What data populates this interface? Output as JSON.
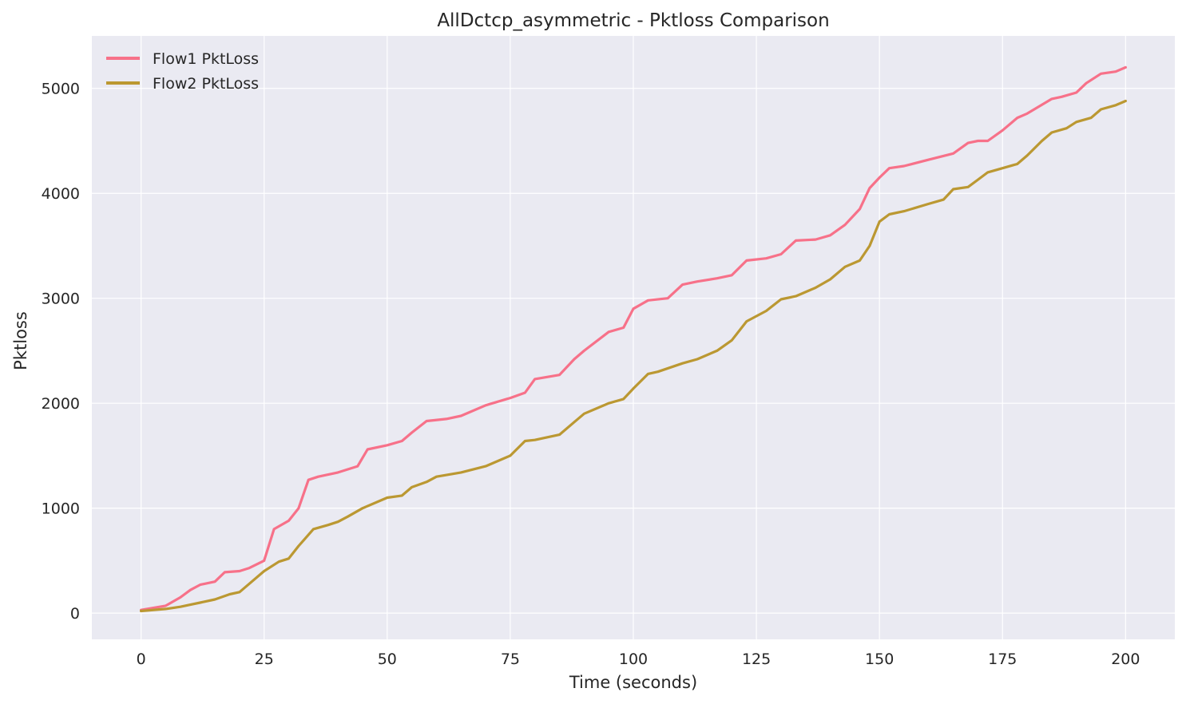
{
  "chart_data": {
    "type": "line",
    "title": "AllDctcp_asymmetric - Pktloss Comparison",
    "xlabel": "Time (seconds)",
    "ylabel": "Pktloss",
    "xlim": [
      -10,
      210
    ],
    "ylim": [
      -250,
      5500
    ],
    "x_ticks": [
      0,
      25,
      50,
      75,
      100,
      125,
      150,
      175,
      200
    ],
    "y_ticks": [
      0,
      1000,
      2000,
      3000,
      4000,
      5000
    ],
    "grid": true,
    "legend_position": "top-left",
    "series": [
      {
        "name": "Flow1 PktLoss",
        "color": "#f77189",
        "x": [
          0,
          5,
          8,
          10,
          12,
          15,
          17,
          20,
          22,
          25,
          27,
          30,
          32,
          34,
          36,
          40,
          44,
          46,
          50,
          53,
          55,
          58,
          62,
          65,
          70,
          75,
          78,
          80,
          85,
          88,
          90,
          95,
          98,
          100,
          103,
          107,
          110,
          113,
          117,
          120,
          123,
          127,
          130,
          133,
          137,
          140,
          143,
          146,
          148,
          150,
          152,
          155,
          160,
          165,
          168,
          170,
          172,
          175,
          178,
          180,
          185,
          187,
          190,
          192,
          195,
          198,
          200
        ],
        "y": [
          30,
          70,
          150,
          220,
          270,
          300,
          390,
          400,
          430,
          500,
          800,
          880,
          1000,
          1270,
          1300,
          1340,
          1400,
          1560,
          1600,
          1640,
          1720,
          1830,
          1850,
          1880,
          1980,
          2050,
          2100,
          2230,
          2270,
          2420,
          2500,
          2680,
          2720,
          2900,
          2980,
          3000,
          3130,
          3160,
          3190,
          3220,
          3360,
          3380,
          3420,
          3550,
          3560,
          3600,
          3700,
          3850,
          4050,
          4150,
          4240,
          4260,
          4320,
          4380,
          4480,
          4500,
          4500,
          4600,
          4720,
          4760,
          4900,
          4920,
          4960,
          5050,
          5140,
          5160,
          5200
        ]
      },
      {
        "name": "Flow2 PktLoss",
        "color": "#bb9832",
        "x": [
          0,
          5,
          8,
          10,
          12,
          15,
          18,
          20,
          22,
          25,
          28,
          30,
          32,
          35,
          38,
          40,
          42,
          45,
          50,
          53,
          55,
          58,
          60,
          65,
          70,
          75,
          78,
          80,
          85,
          88,
          90,
          95,
          98,
          100,
          103,
          105,
          110,
          113,
          117,
          120,
          123,
          127,
          130,
          133,
          137,
          140,
          143,
          146,
          148,
          150,
          152,
          155,
          160,
          163,
          165,
          168,
          170,
          172,
          175,
          178,
          180,
          183,
          185,
          188,
          190,
          193,
          195,
          198,
          200
        ],
        "y": [
          20,
          40,
          60,
          80,
          100,
          130,
          180,
          200,
          280,
          400,
          490,
          520,
          640,
          800,
          840,
          870,
          920,
          1000,
          1100,
          1120,
          1200,
          1250,
          1300,
          1340,
          1400,
          1500,
          1640,
          1650,
          1700,
          1820,
          1900,
          2000,
          2040,
          2140,
          2280,
          2300,
          2380,
          2420,
          2500,
          2600,
          2780,
          2880,
          2990,
          3020,
          3100,
          3180,
          3300,
          3360,
          3500,
          3730,
          3800,
          3830,
          3900,
          3940,
          4040,
          4060,
          4130,
          4200,
          4240,
          4280,
          4360,
          4500,
          4580,
          4620,
          4680,
          4720,
          4800,
          4840,
          4880
        ]
      }
    ]
  }
}
